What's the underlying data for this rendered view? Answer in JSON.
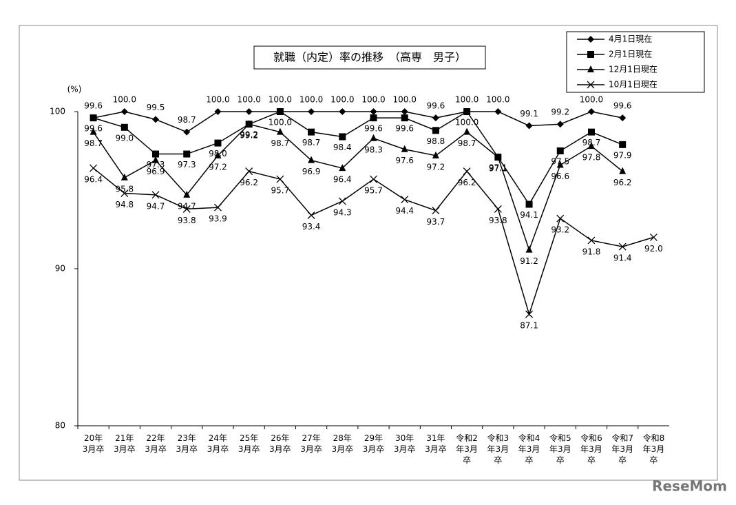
{
  "chart_data": {
    "type": "line",
    "title": "就職（内定）率の推移　（高専　男子）",
    "y_label": "(%)",
    "watermark": "ReseMom",
    "categories": [
      "20年3月卒",
      "21年3月卒",
      "22年3月卒",
      "23年3月卒",
      "24年3月卒",
      "25年3月卒",
      "26年3月卒",
      "27年3月卒",
      "28年3月卒",
      "29年3月卒",
      "30年3月卒",
      "31年3月卒",
      "令和2年3月卒",
      "令和3年3月卒",
      "令和4年3月卒",
      "令和5年3月卒",
      "令和6年3月卒",
      "令和7年3月卒",
      "令和8年3月卒"
    ],
    "ylim": [
      80,
      100
    ],
    "yticks": [
      80,
      90,
      100
    ],
    "grid": false,
    "series": [
      {
        "name": "4月1日現在",
        "color": "#000000",
        "marker": "diamond",
        "values": [
          99.6,
          100,
          99.5,
          98.7,
          100,
          100,
          100,
          100,
          100,
          100,
          100,
          99.6,
          100,
          100,
          99.1,
          99.2,
          100,
          99.6,
          null
        ],
        "value_labels": [
          "99.6",
          "100.0",
          "99.5",
          "98.7",
          "100.0",
          "100.0",
          "100.0",
          "100.0",
          "100.0",
          "100.0",
          "100.0",
          "99.6",
          "100.0",
          "100.0",
          "99.1",
          "99.2",
          "100.0",
          "99.6",
          null
        ]
      },
      {
        "name": "2月1日現在",
        "color": "#000000",
        "marker": "square",
        "values": [
          99.6,
          99,
          97.3,
          97.3,
          98,
          99.2,
          100,
          98.7,
          98.4,
          99.6,
          99.6,
          98.8,
          100,
          97.1,
          94.1,
          97.5,
          98.7,
          97.9,
          null
        ],
        "value_labels": [
          "99.6",
          "99.0",
          "97.3",
          "97.3",
          "98.0",
          "99.2",
          "100.0",
          "98.7",
          "98.4",
          "99.6",
          "99.6",
          "98.8",
          "100.0",
          "97.1",
          "94.1",
          "97.5",
          "98.7",
          "97.9",
          null
        ]
      },
      {
        "name": "12月1日現在",
        "color": "#000000",
        "marker": "triangle",
        "values": [
          98.7,
          95.8,
          96.9,
          94.7,
          97.2,
          99.2,
          98.7,
          96.9,
          96.4,
          98.3,
          97.6,
          97.2,
          98.7,
          97.1,
          91.2,
          96.6,
          97.8,
          96.2,
          null
        ],
        "value_labels": [
          "98.7",
          "95.8",
          "96.9",
          "94.7",
          "97.2",
          "99.2",
          "98.7",
          "96.9",
          "96.4",
          "98.3",
          "97.6",
          "97.2",
          "98.7",
          "97.1",
          "91.2",
          "96.6",
          "97.8",
          "96.2",
          null
        ]
      },
      {
        "name": "10月1日現在",
        "color": "#000000",
        "marker": "x",
        "values": [
          96.4,
          94.8,
          94.7,
          93.8,
          93.9,
          96.2,
          95.7,
          93.4,
          94.3,
          95.7,
          94.4,
          93.7,
          96.2,
          93.8,
          87.1,
          93.2,
          91.8,
          91.4,
          92
        ],
        "value_labels": [
          "96.4",
          "94.8",
          "94.7",
          "93.8",
          "93.9",
          "96.2",
          "95.7",
          "93.4",
          "94.3",
          "95.7",
          "94.4",
          "93.7",
          "96.2",
          "93.8",
          "87.1",
          "93.2",
          "91.8",
          "91.4",
          "92.0"
        ]
      }
    ]
  }
}
